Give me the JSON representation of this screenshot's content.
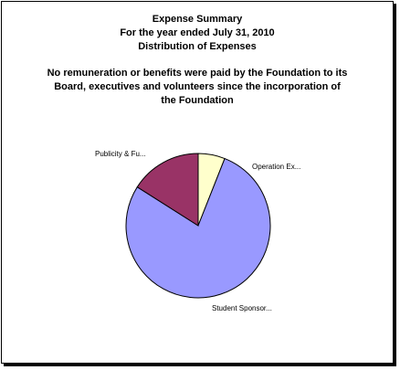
{
  "chart_data": {
    "type": "pie",
    "title_lines": [
      "Expense Summary",
      "For the year ended July 31, 2010",
      "Distribution of Expenses"
    ],
    "note_lines": [
      "No remuneration or benefits were paid by the Foundation to its",
      "Board, executives and volunteers since the incorporation of",
      "the Foundation"
    ],
    "slices": [
      {
        "label": "Operation Ex...",
        "value": 6,
        "color": "#ffffcc"
      },
      {
        "label": "Student Sponsor...",
        "value": 78,
        "color": "#9999ff"
      },
      {
        "label": "Publicity & Fu...",
        "value": 16,
        "color": "#993366"
      }
    ]
  }
}
